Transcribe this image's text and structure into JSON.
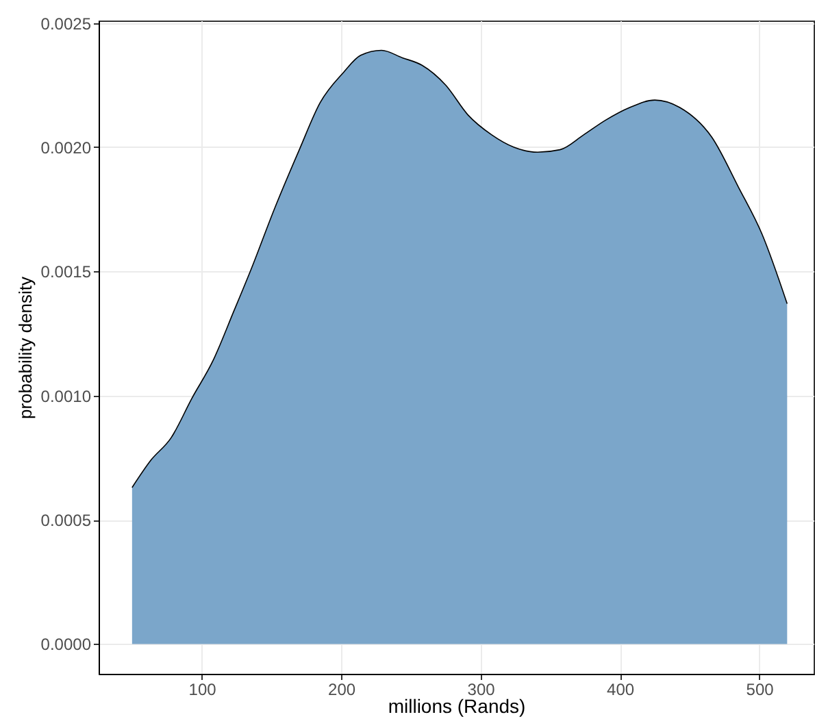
{
  "chart_data": {
    "type": "area",
    "xlabel": "millions (Rands)",
    "ylabel": "probability density",
    "x": [
      50,
      63.5,
      78,
      93,
      108,
      123,
      135.5,
      152,
      170,
      185,
      201.5,
      214,
      229,
      244,
      258,
      275,
      291,
      308,
      324,
      341,
      357,
      374,
      390,
      407,
      425,
      443,
      466,
      485,
      502,
      520
    ],
    "series": [
      {
        "color": "#7ba6ca",
        "values": [
          0.00063,
          0.00074,
          0.00083,
          0.00099,
          0.00114,
          0.00134,
          0.00151,
          0.00175,
          0.00199,
          0.00218,
          0.0023,
          0.00237,
          0.00239,
          0.00236,
          0.00233,
          0.00225,
          0.00213,
          0.00205,
          0.002,
          0.00198,
          0.00199,
          0.00205,
          0.00211,
          0.00216,
          0.00219,
          0.00216,
          0.00204,
          0.00184,
          0.00165,
          0.00137
        ]
      }
    ],
    "xlim": [
      26,
      539
    ],
    "xticks": [
      100,
      200,
      300,
      400,
      500
    ],
    "ylim": [
      -0.00012,
      0.00251
    ],
    "yticks": [
      {
        "value": 0,
        "label": "0.0000"
      },
      {
        "value": 0.0005,
        "label": "0.0005"
      },
      {
        "value": 0.001,
        "label": "0.0010"
      },
      {
        "value": 0.0015,
        "label": "0.0015"
      },
      {
        "value": 0.002,
        "label": "0.0020"
      },
      {
        "value": 0.0025,
        "label": "0.0025"
      }
    ],
    "grid": true
  }
}
